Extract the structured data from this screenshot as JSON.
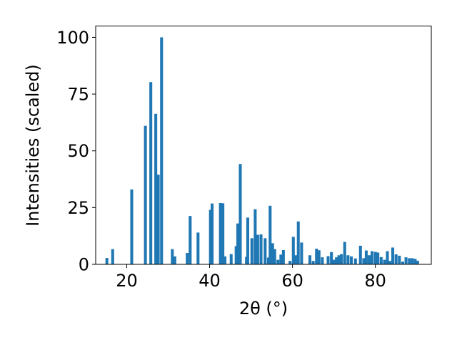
{
  "chart_data": {
    "type": "bar",
    "xlabel": "2θ (°)",
    "ylabel": "Intensities (scaled)",
    "xlim": [
      12.5,
      93.5
    ],
    "ylim": [
      0,
      105
    ],
    "xticks": [
      20,
      40,
      60,
      80
    ],
    "yticks": [
      0,
      25,
      50,
      75,
      100
    ],
    "grid": false,
    "bar_color": "#1f77b4",
    "bar_width": 0.7,
    "x": [
      15.2,
      16.6,
      21.2,
      24.5,
      25.8,
      27.0,
      27.6,
      28.4,
      31.0,
      31.6,
      34.6,
      35.3,
      37.2,
      40.2,
      40.6,
      42.6,
      43.2,
      43.7,
      45.2,
      46.4,
      46.8,
      47.4,
      48.9,
      49.2,
      50.2,
      51.0,
      51.6,
      52.4,
      53.4,
      54.2,
      54.6,
      55.2,
      55.7,
      56.5,
      57.2,
      57.8,
      59.4,
      60.2,
      60.8,
      61.4,
      62.2,
      64.2,
      65.0,
      65.8,
      66.4,
      67.2,
      68.6,
      69.4,
      70.0,
      70.6,
      71.2,
      71.8,
      72.6,
      73.4,
      74.2,
      75.2,
      76.4,
      77.2,
      77.8,
      78.5,
      79.2,
      80.0,
      80.6,
      81.4,
      82.2,
      82.9,
      83.5,
      84.2,
      85.0,
      85.8,
      86.6,
      87.4,
      88.2,
      88.9,
      89.6,
      90.2
    ],
    "values": [
      2.8,
      6.7,
      33.0,
      61.0,
      80.3,
      66.3,
      39.5,
      100.0,
      6.7,
      3.5,
      5.0,
      21.3,
      14.0,
      24.0,
      26.8,
      27.0,
      26.9,
      3.5,
      4.5,
      8.0,
      18.0,
      44.2,
      3.3,
      20.6,
      11.5,
      24.3,
      13.0,
      13.2,
      11.5,
      3.0,
      25.8,
      9.3,
      6.7,
      2.0,
      4.3,
      6.3,
      1.5,
      12.1,
      4.0,
      18.9,
      9.6,
      4.0,
      1.5,
      6.9,
      6.2,
      3.1,
      3.6,
      5.4,
      2.0,
      3.1,
      4.0,
      4.5,
      9.9,
      4.0,
      3.5,
      2.6,
      8.2,
      2.7,
      6.1,
      4.0,
      5.8,
      5.5,
      5.2,
      3.2,
      2.0,
      5.8,
      1.5,
      7.4,
      4.4,
      3.8,
      1.2,
      3.1,
      2.7,
      2.7,
      2.4,
      1.6
    ]
  }
}
